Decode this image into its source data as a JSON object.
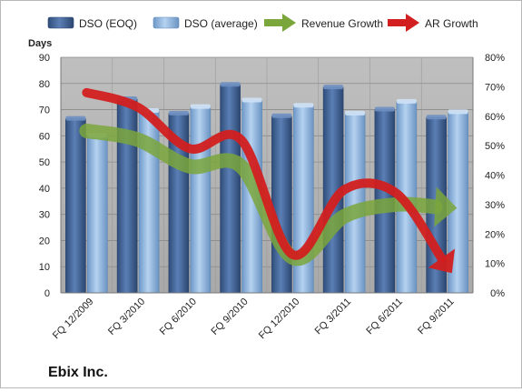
{
  "chart_data": {
    "type": "bar",
    "title": "",
    "company": "Ebix Inc.",
    "left_axis_label": "Days",
    "categories": [
      "FQ 12/2009",
      "FQ 3/2010",
      "FQ 6/2010",
      "FQ 9/2010",
      "FQ 12/2010",
      "FQ 3/2011",
      "FQ 6/2011",
      "FQ 9/2011"
    ],
    "y_left": {
      "min": 0,
      "max": 90,
      "ticks": [
        "0",
        "10",
        "20",
        "30",
        "40",
        "50",
        "60",
        "70",
        "80",
        "90"
      ]
    },
    "y_right": {
      "min": 0,
      "max": 80,
      "ticks": [
        "0%",
        "10%",
        "20%",
        "30%",
        "40%",
        "50%",
        "60%",
        "70%",
        "80%"
      ]
    },
    "bar_series": [
      {
        "name": "DSO (EOQ)",
        "color": "#4a6fa5",
        "values": [
          66.5,
          74,
          68.5,
          79.5,
          67.5,
          78.5,
          70,
          67
        ]
      },
      {
        "name": "DSO (average)",
        "color": "#8fb6e0",
        "values": [
          60,
          69.5,
          71,
          73.5,
          71.5,
          68.5,
          73,
          69
        ]
      }
    ],
    "line_series": [
      {
        "name": "Revenue Growth",
        "color": "#7aa63c",
        "values": [
          55,
          52,
          43,
          43,
          12,
          26,
          30,
          29
        ],
        "unit": "%"
      },
      {
        "name": "AR Growth",
        "color": "#d21f1f",
        "values": [
          68,
          63,
          49,
          52,
          13,
          35,
          34,
          9
        ],
        "unit": "%"
      }
    ],
    "legend_position": "top",
    "grid": true
  }
}
